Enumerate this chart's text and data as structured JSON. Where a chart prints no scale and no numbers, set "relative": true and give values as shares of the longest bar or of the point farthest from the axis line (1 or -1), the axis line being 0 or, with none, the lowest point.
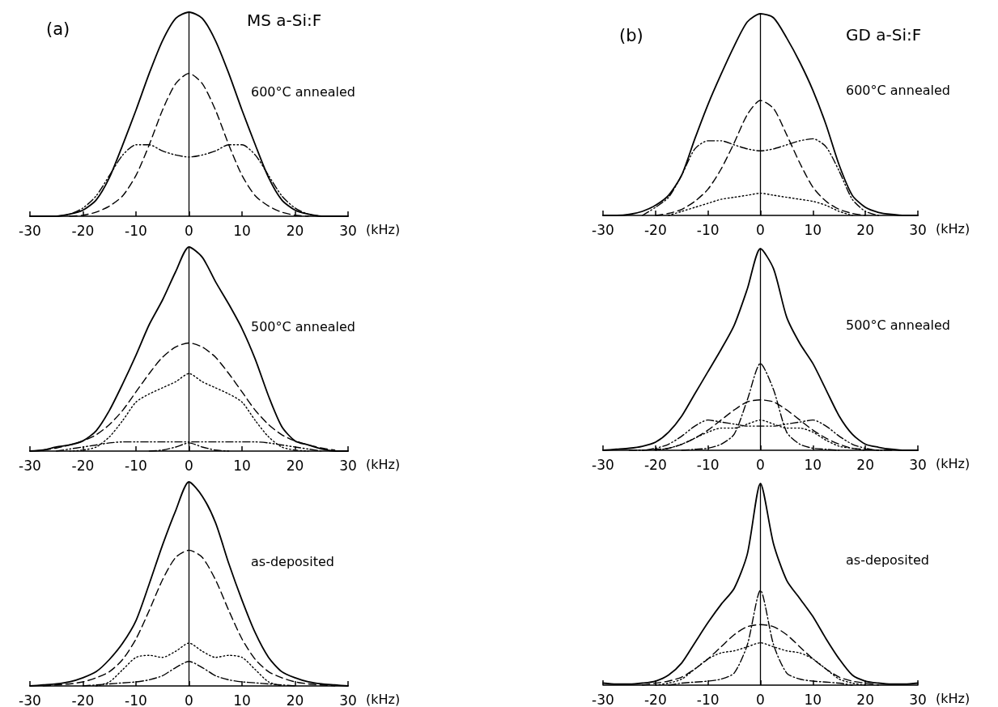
{
  "chart_data": [
    {
      "type": "line",
      "relative": true,
      "title": "(a)",
      "subtitle": "MS a-Si:F",
      "xlabel": "(kHz)",
      "marker": "none",
      "annotations": [
        "600°C annealed"
      ],
      "xlim": [
        -30,
        30
      ],
      "xticks": [
        -30,
        -20,
        -10,
        0,
        10,
        20,
        30
      ],
      "ref_lines": [
        {
          "axis": "x",
          "value": 0,
          "color": "#000000"
        }
      ],
      "x": [
        -30,
        -27.5,
        -25,
        -22.5,
        -20,
        -17.5,
        -15,
        -12.5,
        -10,
        -7.5,
        -5,
        -2.5,
        0,
        2.5,
        5,
        7.5,
        10,
        12.5,
        15,
        17.5,
        20,
        22.5,
        25,
        27.5,
        30
      ],
      "series": [
        {
          "color": "#000000",
          "line_style": "solid",
          "values": [
            0,
            0,
            0,
            0.01,
            0.03,
            0.08,
            0.19,
            0.35,
            0.52,
            0.7,
            0.86,
            0.97,
            1,
            0.97,
            0.86,
            0.7,
            0.52,
            0.35,
            0.19,
            0.08,
            0.03,
            0.01,
            0,
            0,
            0
          ]
        },
        {
          "color": "#000000",
          "line_style": "dashed",
          "values": [
            null,
            null,
            null,
            0,
            0.005,
            0.02,
            0.05,
            0.1,
            0.2,
            0.35,
            0.52,
            0.65,
            0.7,
            0.65,
            0.52,
            0.35,
            0.2,
            0.1,
            0.05,
            0.02,
            0.005,
            0,
            null,
            null,
            null
          ]
        },
        {
          "color": "#000000",
          "line_style": "dashdotdot",
          "values": [
            null,
            null,
            0,
            0.01,
            0.04,
            0.1,
            0.2,
            0.3,
            0.35,
            0.35,
            0.32,
            0.3,
            0.29,
            0.3,
            0.32,
            0.35,
            0.35,
            0.3,
            0.2,
            0.1,
            0.04,
            0.01,
            0,
            null,
            null
          ]
        }
      ]
    },
    {
      "type": "line",
      "relative": true,
      "title": "(b)",
      "subtitle": "GD a-Si:F",
      "xlabel": "(kHz)",
      "marker": "none",
      "annotations": [
        "600°C annealed"
      ],
      "xlim": [
        -30,
        30
      ],
      "xticks": [
        -30,
        -20,
        -10,
        0,
        10,
        20,
        30
      ],
      "ref_lines": [
        {
          "axis": "x",
          "value": 0,
          "color": "#000000"
        }
      ],
      "x": [
        -30,
        -27.5,
        -25,
        -22.5,
        -20,
        -17.5,
        -15,
        -12.5,
        -10,
        -7.5,
        -5,
        -2.5,
        0,
        2.5,
        5,
        7.5,
        10,
        12.5,
        15,
        17.5,
        20,
        22.5,
        25,
        27.5,
        30
      ],
      "series": [
        {
          "color": "#000000",
          "line_style": "solid",
          "values": [
            0,
            0,
            0.005,
            0.02,
            0.05,
            0.1,
            0.2,
            0.38,
            0.55,
            0.7,
            0.84,
            0.96,
            1,
            0.98,
            0.88,
            0.76,
            0.62,
            0.45,
            0.25,
            0.1,
            0.04,
            0.015,
            0.005,
            0,
            0
          ]
        },
        {
          "color": "#000000",
          "line_style": "dashed",
          "values": [
            null,
            null,
            null,
            null,
            0,
            0.01,
            0.03,
            0.07,
            0.13,
            0.23,
            0.36,
            0.5,
            0.57,
            0.53,
            0.4,
            0.26,
            0.14,
            0.07,
            0.03,
            0.01,
            0,
            null,
            null,
            null,
            null
          ]
        },
        {
          "color": "#000000",
          "line_style": "dashdotdot",
          "values": [
            null,
            null,
            null,
            0,
            0.04,
            0.09,
            0.2,
            0.33,
            0.37,
            0.37,
            0.35,
            0.33,
            0.32,
            0.33,
            0.35,
            0.37,
            0.38,
            0.34,
            0.22,
            0.08,
            0.02,
            0,
            null,
            null,
            null
          ]
        },
        {
          "color": "#000000",
          "line_style": "dotted",
          "values": [
            null,
            null,
            null,
            null,
            null,
            0,
            0.02,
            0.04,
            0.06,
            0.08,
            0.09,
            0.1,
            0.11,
            0.1,
            0.09,
            0.08,
            0.07,
            0.05,
            0.02,
            0,
            null,
            null,
            null,
            null,
            null
          ]
        }
      ]
    },
    {
      "type": "line",
      "relative": true,
      "xlabel": "(kHz)",
      "marker": "none",
      "annotations": [
        "500°C annealed"
      ],
      "xlim": [
        -30,
        30
      ],
      "xticks": [
        -30,
        -20,
        -10,
        0,
        10,
        20,
        30
      ],
      "ref_lines": [
        {
          "axis": "x",
          "value": 0,
          "color": "#000000"
        }
      ],
      "x": [
        -30,
        -27.5,
        -25,
        -22.5,
        -20,
        -17.5,
        -15,
        -12.5,
        -10,
        -7.5,
        -5,
        -2.5,
        0,
        2.5,
        5,
        7.5,
        10,
        12.5,
        15,
        17.5,
        20,
        22.5,
        25,
        27.5,
        30
      ],
      "series": [
        {
          "color": "#000000",
          "line_style": "solid",
          "values": [
            0,
            0.005,
            0.02,
            0.03,
            0.05,
            0.1,
            0.2,
            0.33,
            0.47,
            0.62,
            0.74,
            0.88,
            1,
            0.95,
            0.83,
            0.72,
            0.6,
            0.45,
            0.27,
            0.12,
            0.05,
            0.03,
            0.01,
            0,
            0
          ]
        },
        {
          "color": "#000000",
          "line_style": "dashed",
          "values": [
            null,
            0.005,
            0.015,
            0.03,
            0.05,
            0.08,
            0.13,
            0.2,
            0.29,
            0.38,
            0.46,
            0.51,
            0.53,
            0.51,
            0.46,
            0.38,
            0.29,
            0.2,
            0.13,
            0.08,
            0.05,
            0.03,
            0.015,
            0.005,
            null
          ]
        },
        {
          "color": "#000000",
          "line_style": "dotted",
          "values": [
            null,
            null,
            null,
            0,
            0.005,
            0.02,
            0.07,
            0.15,
            0.24,
            0.28,
            0.31,
            0.34,
            0.38,
            0.34,
            0.31,
            0.28,
            0.24,
            0.15,
            0.07,
            0.02,
            0.005,
            0,
            null,
            null,
            null
          ]
        },
        {
          "color": "#000000",
          "line_style": "dashdotdot",
          "values": [
            null,
            null,
            0,
            0.01,
            0.02,
            0.03,
            0.04,
            0.045,
            0.045,
            0.045,
            0.045,
            0.045,
            0.045,
            0.045,
            0.045,
            0.045,
            0.045,
            0.045,
            0.04,
            0.03,
            0.02,
            0.01,
            0,
            null,
            null
          ]
        },
        {
          "color": "#000000",
          "line_style": "dashdot",
          "values": [
            null,
            null,
            null,
            null,
            null,
            null,
            null,
            null,
            null,
            0,
            0.005,
            0.02,
            0.04,
            0.02,
            0.005,
            0,
            null,
            null,
            null,
            null,
            null,
            null,
            null,
            null,
            null
          ]
        }
      ]
    },
    {
      "type": "line",
      "relative": true,
      "xlabel": "(kHz)",
      "marker": "none",
      "annotations": [
        "500°C annealed"
      ],
      "xlim": [
        -30,
        30
      ],
      "xticks": [
        -30,
        -20,
        -10,
        0,
        10,
        20,
        30
      ],
      "ref_lines": [
        {
          "axis": "x",
          "value": 0,
          "color": "#000000"
        }
      ],
      "x": [
        -30,
        -27.5,
        -25,
        -22.5,
        -20,
        -17.5,
        -15,
        -12.5,
        -10,
        -7.5,
        -5,
        -2.5,
        0,
        2.5,
        5,
        7.5,
        10,
        12.5,
        15,
        17.5,
        20,
        22.5,
        25,
        27.5,
        30
      ],
      "series": [
        {
          "color": "#000000",
          "line_style": "solid",
          "values": [
            0,
            0.005,
            0.01,
            0.02,
            0.04,
            0.09,
            0.17,
            0.28,
            0.39,
            0.5,
            0.62,
            0.8,
            1,
            0.9,
            0.66,
            0.53,
            0.43,
            0.3,
            0.17,
            0.08,
            0.03,
            0.015,
            0.005,
            0,
            0
          ]
        },
        {
          "color": "#000000",
          "line_style": "dashdot",
          "values": [
            null,
            null,
            null,
            null,
            null,
            null,
            0,
            0.005,
            0.01,
            0.03,
            0.08,
            0.25,
            0.43,
            0.3,
            0.09,
            0.03,
            0.01,
            0.005,
            0,
            null,
            null,
            null,
            null,
            null,
            null
          ]
        },
        {
          "color": "#000000",
          "line_style": "dashed",
          "values": [
            null,
            null,
            null,
            0,
            0.005,
            0.01,
            0.03,
            0.06,
            0.1,
            0.15,
            0.2,
            0.24,
            0.25,
            0.24,
            0.2,
            0.15,
            0.1,
            0.06,
            0.03,
            0.01,
            0.005,
            0,
            null,
            null,
            null
          ]
        },
        {
          "color": "#000000",
          "line_style": "dashdotdot",
          "values": [
            null,
            null,
            0,
            0,
            0.01,
            0.03,
            0.07,
            0.12,
            0.15,
            0.14,
            0.13,
            0.12,
            0.12,
            0.12,
            0.13,
            0.14,
            0.15,
            0.12,
            0.07,
            0.03,
            0.01,
            0,
            0,
            null,
            null
          ]
        },
        {
          "color": "#000000",
          "line_style": "dotted",
          "values": [
            null,
            null,
            null,
            null,
            0,
            0.01,
            0.03,
            0.06,
            0.09,
            0.11,
            0.11,
            0.13,
            0.15,
            0.13,
            0.11,
            0.11,
            0.09,
            0.05,
            0.02,
            0.01,
            0,
            null,
            null,
            null,
            null
          ]
        }
      ]
    },
    {
      "type": "line",
      "relative": true,
      "xlabel": "(kHz)",
      "marker": "none",
      "annotations": [
        "as-deposited"
      ],
      "xlim": [
        -30,
        30
      ],
      "xticks": [
        -30,
        -20,
        -10,
        0,
        10,
        20,
        30
      ],
      "ref_lines": [
        {
          "axis": "x",
          "value": 0,
          "color": "#000000"
        }
      ],
      "x": [
        -30,
        -27.5,
        -25,
        -22.5,
        -20,
        -17.5,
        -15,
        -12.5,
        -10,
        -7.5,
        -5,
        -2.5,
        0,
        2.5,
        5,
        7.5,
        10,
        12.5,
        15,
        17.5,
        20,
        22.5,
        25,
        27.5,
        30
      ],
      "series": [
        {
          "color": "#000000",
          "line_style": "solid",
          "values": [
            0,
            0.005,
            0.01,
            0.02,
            0.04,
            0.07,
            0.13,
            0.21,
            0.32,
            0.5,
            0.69,
            0.86,
            1,
            0.93,
            0.8,
            0.6,
            0.42,
            0.26,
            0.14,
            0.07,
            0.04,
            0.02,
            0.01,
            0.005,
            0
          ]
        },
        {
          "color": "#000000",
          "line_style": "dashed",
          "values": [
            null,
            0,
            0.005,
            0.01,
            0.02,
            0.04,
            0.07,
            0.13,
            0.23,
            0.37,
            0.52,
            0.63,
            0.665,
            0.63,
            0.52,
            0.37,
            0.23,
            0.13,
            0.07,
            0.04,
            0.02,
            0.01,
            0.005,
            0,
            null
          ]
        },
        {
          "color": "#000000",
          "line_style": "dotted",
          "values": [
            null,
            null,
            null,
            null,
            null,
            0,
            0.02,
            0.08,
            0.14,
            0.15,
            0.14,
            0.17,
            0.21,
            0.17,
            0.14,
            0.15,
            0.14,
            0.08,
            0.02,
            0,
            null,
            null,
            null,
            null,
            null
          ]
        },
        {
          "color": "#000000",
          "line_style": "dashdot",
          "values": [
            null,
            null,
            null,
            null,
            0,
            0.005,
            0.01,
            0.015,
            0.02,
            0.03,
            0.05,
            0.09,
            0.12,
            0.09,
            0.05,
            0.03,
            0.02,
            0.015,
            0.01,
            0.005,
            0,
            null,
            null,
            null,
            null
          ]
        }
      ]
    },
    {
      "type": "line",
      "relative": true,
      "xlabel": "(kHz)",
      "marker": "none",
      "annotations": [
        "as-deposited"
      ],
      "xlim": [
        -30,
        30
      ],
      "xticks": [
        -30,
        -20,
        -10,
        0,
        10,
        20,
        30
      ],
      "ref_lines": [
        {
          "axis": "x",
          "value": 0,
          "color": "#000000"
        }
      ],
      "x": [
        -30,
        -27.5,
        -25,
        -22.5,
        -20,
        -17.5,
        -15,
        -12.5,
        -10,
        -7.5,
        -5,
        -2.5,
        0,
        2.5,
        5,
        7.5,
        10,
        12.5,
        15,
        17.5,
        20,
        22.5,
        25,
        27.5,
        30
      ],
      "series": [
        {
          "color": "#000000",
          "line_style": "solid",
          "values": [
            0.01,
            0.005,
            0.005,
            0.01,
            0.02,
            0.05,
            0.11,
            0.21,
            0.31,
            0.4,
            0.48,
            0.65,
            1,
            0.7,
            0.52,
            0.43,
            0.34,
            0.23,
            0.13,
            0.05,
            0.02,
            0.01,
            0.005,
            0.005,
            0.01
          ]
        },
        {
          "color": "#000000",
          "line_style": "dashdot",
          "values": [
            null,
            null,
            null,
            null,
            null,
            0,
            0.01,
            0.015,
            0.02,
            0.03,
            0.06,
            0.2,
            0.47,
            0.2,
            0.06,
            0.03,
            0.02,
            0.015,
            0.01,
            0,
            null,
            null,
            null,
            null,
            null
          ]
        },
        {
          "color": "#000000",
          "line_style": "dashed",
          "values": [
            null,
            null,
            null,
            0,
            0.01,
            0.02,
            0.04,
            0.08,
            0.13,
            0.19,
            0.25,
            0.29,
            0.3,
            0.29,
            0.25,
            0.19,
            0.13,
            0.08,
            0.04,
            0.02,
            0.01,
            0,
            null,
            null,
            null
          ]
        },
        {
          "color": "#000000",
          "line_style": "dotted",
          "values": [
            null,
            null,
            null,
            null,
            0,
            0.01,
            0.03,
            0.08,
            0.13,
            0.16,
            0.17,
            0.19,
            0.21,
            0.19,
            0.17,
            0.16,
            0.13,
            0.08,
            0.03,
            0.01,
            0,
            null,
            null,
            null,
            null
          ]
        }
      ]
    }
  ]
}
